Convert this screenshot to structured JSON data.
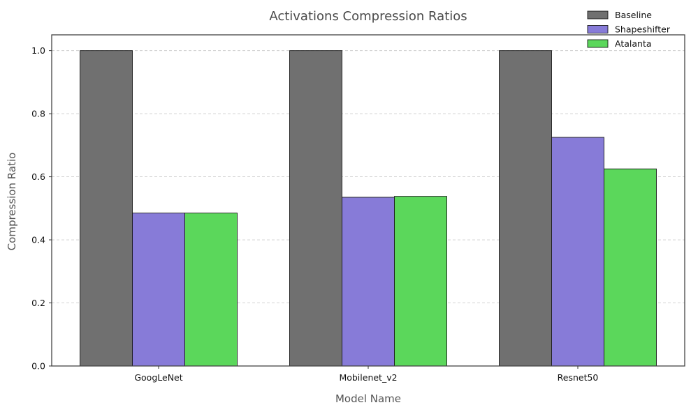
{
  "chart_data": {
    "type": "bar",
    "title": "Activations Compression Ratios",
    "xlabel": "Model Name",
    "ylabel": "Compression Ratio",
    "categories": [
      "GoogLeNet",
      "Mobilenet_v2",
      "Resnet50"
    ],
    "series": [
      {
        "name": "Baseline",
        "values": [
          1.0,
          1.0,
          1.0
        ],
        "color": "#707070"
      },
      {
        "name": "Shapeshifter",
        "values": [
          0.485,
          0.535,
          0.725
        ],
        "color": "#877bd8"
      },
      {
        "name": "Atalanta",
        "values": [
          0.485,
          0.538,
          0.625
        ],
        "color": "#5bd75b"
      }
    ],
    "ylim": [
      0,
      1.05
    ],
    "yticks": [
      0.0,
      0.2,
      0.4,
      0.6,
      0.8,
      1.0
    ],
    "ytick_labels": [
      "0.0",
      "0.2",
      "0.4",
      "0.6",
      "0.8",
      "1.0"
    ],
    "grid": "horizontal-dashed",
    "legend_position": "top-right"
  }
}
